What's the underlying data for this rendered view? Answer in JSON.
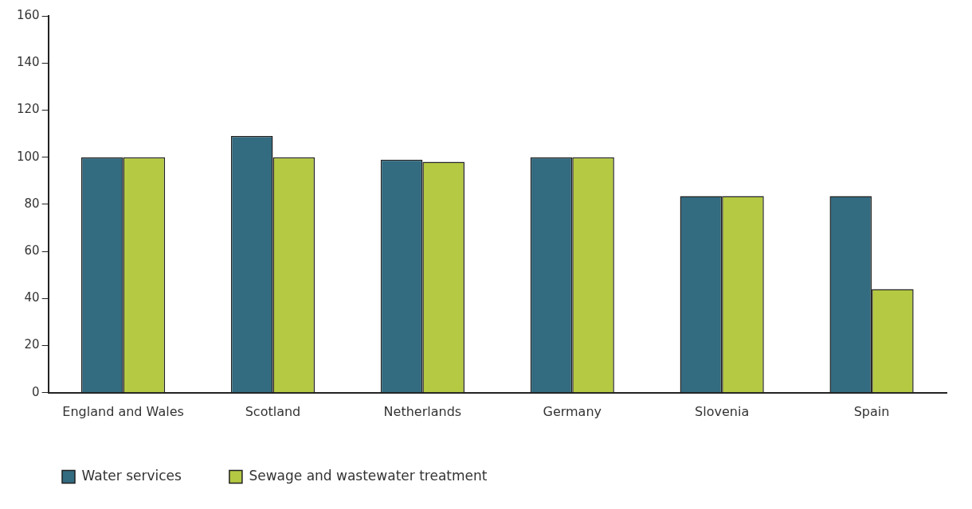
{
  "chart_data": {
    "type": "bar",
    "categories": [
      "England and Wales",
      "Scotland",
      "Netherlands",
      "Germany",
      "Slovenia",
      "Spain"
    ],
    "series": [
      {
        "name": "Water services",
        "color": "#336b80",
        "values": [
          100,
          109,
          99,
          100,
          83.5,
          83.5
        ]
      },
      {
        "name": "Sewage and wastewater treatment",
        "color": "#b5c942",
        "values": [
          100,
          100,
          98,
          100,
          83.5,
          44
        ]
      }
    ],
    "ylim": [
      0,
      160
    ],
    "yticks": [
      0,
      20,
      40,
      60,
      80,
      100,
      120,
      140,
      160
    ],
    "grid": false,
    "legend": "bottom left"
  }
}
